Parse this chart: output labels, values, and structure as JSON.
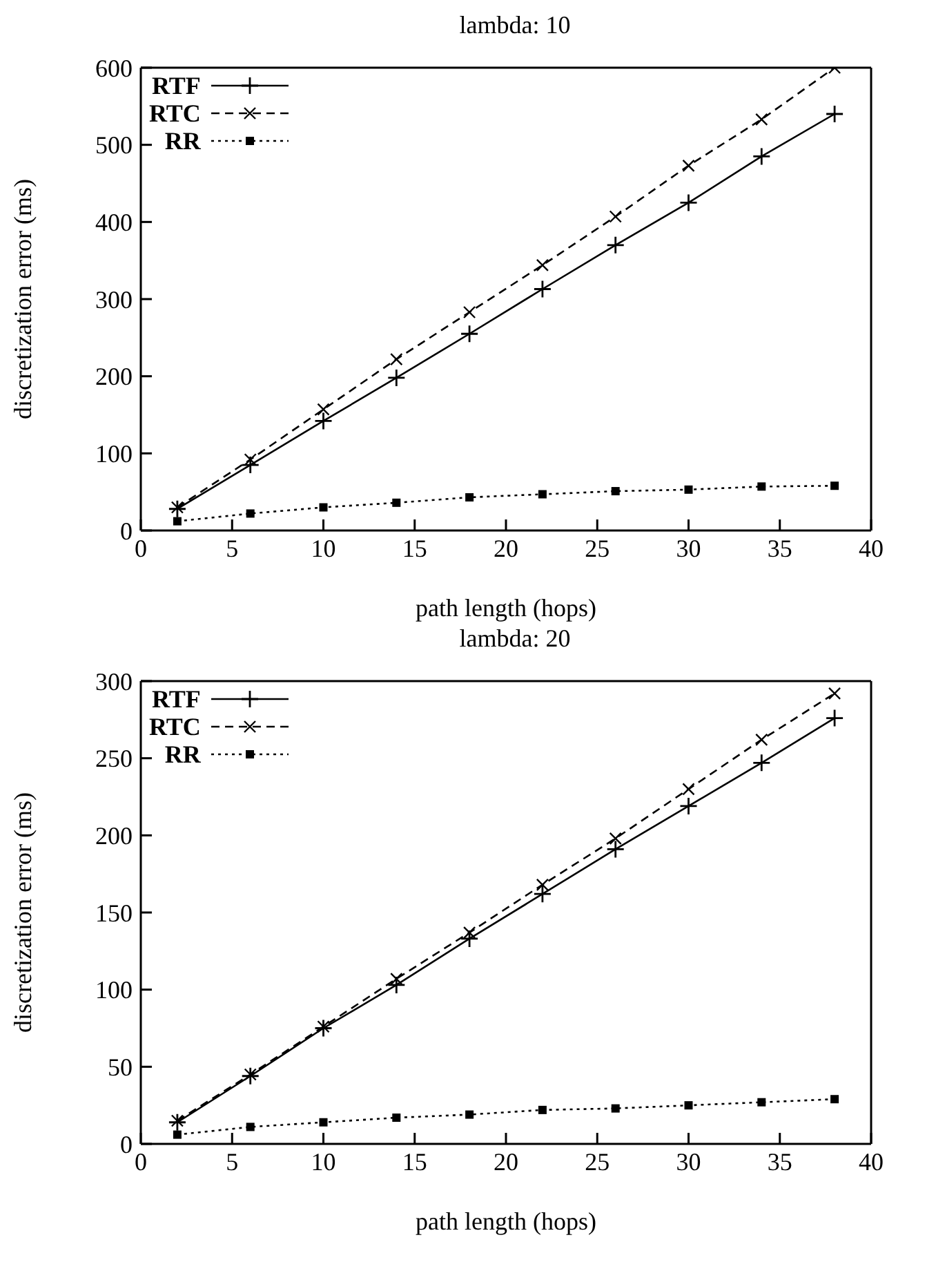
{
  "chart_data": [
    {
      "type": "line",
      "title": "lambda: 10",
      "xlabel": "path length (hops)",
      "ylabel": "discretization error (ms)",
      "x": [
        2,
        6,
        10,
        14,
        18,
        22,
        26,
        30,
        34,
        38
      ],
      "xlim": [
        0,
        40
      ],
      "xticks": [
        0,
        5,
        10,
        15,
        20,
        25,
        30,
        35,
        40
      ],
      "ylim": [
        0,
        600
      ],
      "yticks": [
        0,
        100,
        200,
        300,
        400,
        500,
        600
      ],
      "legend": "top left",
      "grid": false,
      "series": [
        {
          "name": "RTF",
          "color": "#000000",
          "line_style": "solid",
          "marker": "cross",
          "values": [
            28,
            85,
            142,
            198,
            255,
            313,
            370,
            425,
            485,
            540
          ]
        },
        {
          "name": "RTC",
          "color": "#000000",
          "line_style": "dashed",
          "marker": "x",
          "values": [
            30,
            92,
            157,
            222,
            283,
            344,
            407,
            473,
            533,
            600
          ]
        },
        {
          "name": "RR",
          "color": "#000000",
          "line_style": "dotted",
          "marker": "square",
          "values": [
            12,
            22,
            30,
            36,
            43,
            47,
            51,
            53,
            57,
            58
          ]
        }
      ]
    },
    {
      "type": "line",
      "title": "lambda: 20",
      "xlabel": "path length (hops)",
      "ylabel": "discretization error (ms)",
      "x": [
        2,
        6,
        10,
        14,
        18,
        22,
        26,
        30,
        34,
        38
      ],
      "xlim": [
        0,
        40
      ],
      "xticks": [
        0,
        5,
        10,
        15,
        20,
        25,
        30,
        35,
        40
      ],
      "ylim": [
        0,
        300
      ],
      "yticks": [
        0,
        50,
        100,
        150,
        200,
        250,
        300
      ],
      "legend": "top left",
      "grid": false,
      "series": [
        {
          "name": "RTF",
          "color": "#000000",
          "line_style": "solid",
          "marker": "cross",
          "values": [
            14,
            44,
            75,
            103,
            133,
            162,
            191,
            219,
            247,
            276
          ]
        },
        {
          "name": "RTC",
          "color": "#000000",
          "line_style": "dashed",
          "marker": "x",
          "values": [
            15,
            45,
            76,
            107,
            137,
            168,
            198,
            230,
            262,
            292
          ]
        },
        {
          "name": "RR",
          "color": "#000000",
          "line_style": "dotted",
          "marker": "square",
          "values": [
            6,
            11,
            14,
            17,
            19,
            22,
            23,
            25,
            27,
            29
          ]
        }
      ]
    }
  ]
}
